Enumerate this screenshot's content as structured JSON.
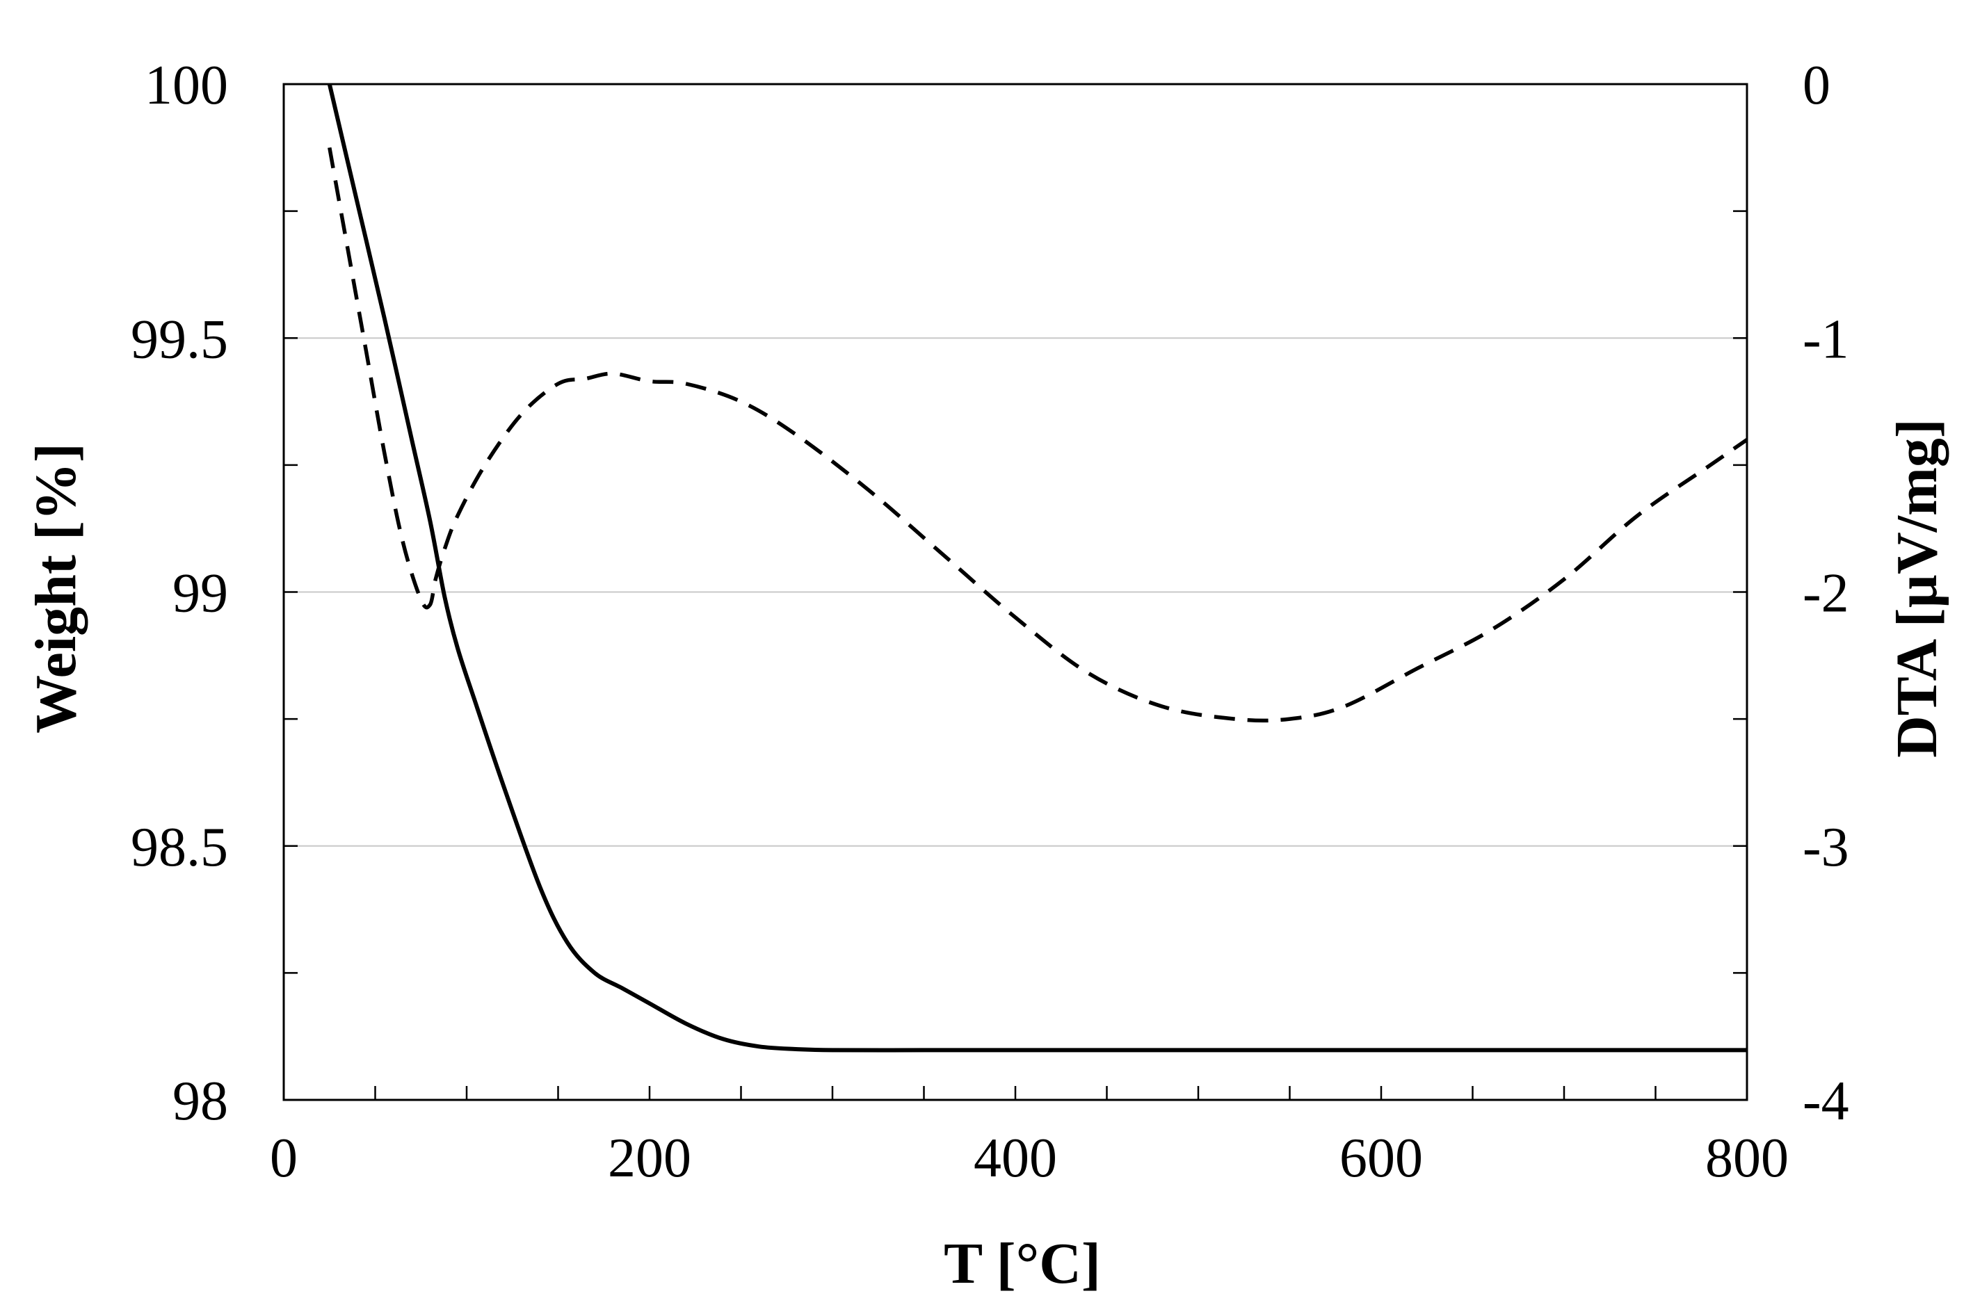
{
  "chart_data": {
    "type": "line",
    "title": "",
    "xlabel": "T [°C]",
    "ylabel": "Weight [%]",
    "y2label": "DTA [µV/mg]",
    "xlim": [
      0,
      800
    ],
    "ylim": [
      98,
      100
    ],
    "y2lim": [
      -4,
      0
    ],
    "xticks": [
      0,
      200,
      400,
      600,
      800
    ],
    "xticks_minor_step": 50,
    "yticks": [
      98,
      98.5,
      99,
      99.5,
      100
    ],
    "yticks_minor_step": 0.25,
    "y2ticks": [
      -4,
      -3,
      -2,
      -1,
      0
    ],
    "grid": "horizontal at major y ticks",
    "series": [
      {
        "name": "Weight",
        "axis": "left",
        "style": "solid",
        "color": "#000000",
        "x": [
          25,
          40,
          55,
          70,
          80,
          88,
          95,
          105,
          120,
          140,
          155,
          170,
          185,
          200,
          220,
          240,
          260,
          280,
          300,
          350,
          400,
          500,
          600,
          700,
          800
        ],
        "y": [
          100.0,
          99.77,
          99.54,
          99.3,
          99.14,
          98.99,
          98.89,
          98.78,
          98.62,
          98.42,
          98.31,
          98.25,
          98.22,
          98.19,
          98.15,
          98.12,
          98.105,
          98.1,
          98.098,
          98.098,
          98.098,
          98.098,
          98.098,
          98.098,
          98.098
        ]
      },
      {
        "name": "DTA",
        "axis": "right",
        "style": "dashed",
        "color": "#000000",
        "x": [
          25,
          35,
          45,
          55,
          65,
          75,
          80,
          83,
          88,
          95,
          110,
          130,
          150,
          165,
          180,
          200,
          220,
          250,
          280,
          320,
          360,
          400,
          440,
          480,
          520,
          550,
          580,
          620,
          660,
          700,
          740,
          780,
          800
        ],
        "y": [
          -0.25,
          -0.65,
          -1.05,
          -1.45,
          -1.8,
          -2.03,
          -2.05,
          -1.95,
          -1.83,
          -1.7,
          -1.5,
          -1.3,
          -1.18,
          -1.16,
          -1.14,
          -1.17,
          -1.18,
          -1.25,
          -1.38,
          -1.6,
          -1.85,
          -2.1,
          -2.32,
          -2.45,
          -2.5,
          -2.5,
          -2.45,
          -2.3,
          -2.15,
          -1.95,
          -1.7,
          -1.5,
          -1.4
        ]
      }
    ]
  }
}
